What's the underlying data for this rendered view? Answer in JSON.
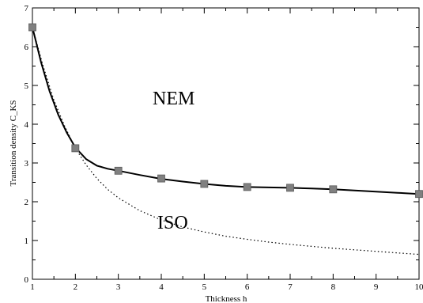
{
  "chart_data": {
    "type": "line",
    "xlabel": "Thickness h",
    "ylabel": "Transition density C_KS",
    "xlim": [
      1,
      10
    ],
    "ylim": [
      0,
      7
    ],
    "x_ticks": [
      "1",
      "2",
      "3",
      "4",
      "5",
      "6",
      "7",
      "8",
      "9",
      "10"
    ],
    "y_ticks": [
      "0",
      "1",
      "2",
      "3",
      "4",
      "5",
      "6",
      "7"
    ],
    "grid": false,
    "annotations": [
      "NEM",
      "ISO"
    ],
    "series": [
      {
        "style": "solid",
        "color": "#000000",
        "x": [
          1,
          1.2,
          1.4,
          1.6,
          1.8,
          2,
          2.25,
          2.5,
          2.75,
          3,
          3.5,
          4,
          4.5,
          5,
          5.5,
          6,
          6.5,
          7,
          7.5,
          8,
          8.5,
          9,
          9.5,
          10
        ],
        "y": [
          6.5,
          5.6,
          4.85,
          4.25,
          3.78,
          3.4,
          3.1,
          2.93,
          2.85,
          2.8,
          2.69,
          2.59,
          2.52,
          2.46,
          2.41,
          2.38,
          2.37,
          2.36,
          2.34,
          2.32,
          2.29,
          2.26,
          2.23,
          2.2
        ]
      },
      {
        "style": "dotted",
        "color": "#000000",
        "x": [
          1,
          1.25,
          1.5,
          1.75,
          2,
          2.25,
          2.5,
          2.75,
          3,
          3.5,
          4,
          4.5,
          5,
          5.5,
          6,
          6.5,
          7,
          7.5,
          8,
          8.5,
          9,
          9.5,
          10
        ],
        "y": [
          6.5,
          5.5,
          4.62,
          3.95,
          3.38,
          2.95,
          2.6,
          2.32,
          2.1,
          1.77,
          1.53,
          1.35,
          1.22,
          1.11,
          1.03,
          0.96,
          0.9,
          0.85,
          0.8,
          0.76,
          0.72,
          0.68,
          0.64
        ]
      },
      {
        "style": "markers",
        "color": "#808080",
        "x": [
          1,
          2,
          3,
          4,
          5,
          6,
          7,
          8,
          10
        ],
        "y": [
          6.5,
          3.38,
          2.8,
          2.6,
          2.46,
          2.38,
          2.36,
          2.32,
          2.2
        ]
      }
    ]
  }
}
